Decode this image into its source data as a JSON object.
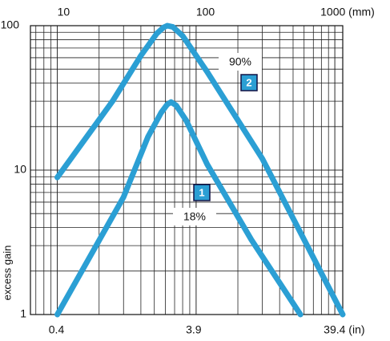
{
  "chart_data": {
    "type": "line",
    "log_x": true,
    "log_y": true,
    "grid": true,
    "minor_grid": true,
    "xlim": [
      6.4,
      1140
    ],
    "xticks": [
      10,
      100,
      {
        "value": 1000,
        "label": "1000 (mm)"
      }
    ],
    "x2lim": [
      0.252,
      44.9
    ],
    "x2ticks": [
      0.4,
      3.9,
      {
        "value": 39.4,
        "label": "39.4 (in)"
      }
    ],
    "ylim": [
      1,
      100
    ],
    "yticks": [
      1,
      10,
      100
    ],
    "ylabel": "excess gain",
    "series": [
      {
        "name": "1",
        "color": "#2b9fd4",
        "annotation": "18%",
        "x": [
          10,
          30,
          45,
          56,
          62,
          66,
          72,
          85,
          120,
          250,
          565
        ],
        "values": [
          1,
          6.5,
          17,
          25,
          28.5,
          29.6,
          28,
          22,
          11,
          3.3,
          1
        ]
      },
      {
        "name": "2",
        "color": "#2b9fd4",
        "annotation": "90%",
        "x": [
          10,
          25,
          40,
          52,
          58,
          62,
          68,
          80,
          120,
          300,
          1140
        ],
        "values": [
          8.9,
          30,
          62,
          88,
          97,
          100,
          98,
          85,
          48,
          12,
          1
        ]
      }
    ]
  }
}
